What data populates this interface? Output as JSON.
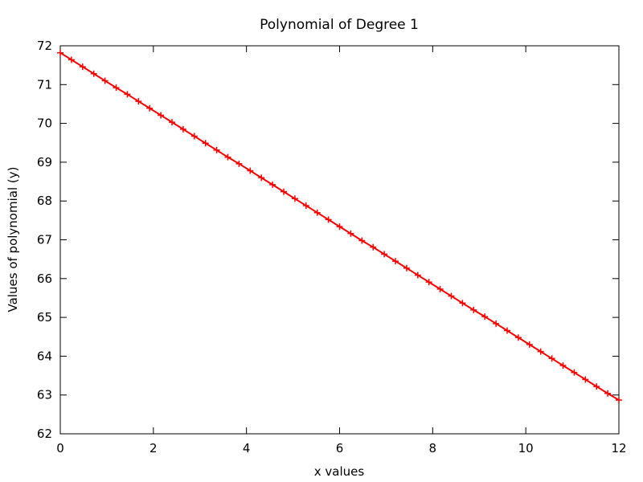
{
  "chart_data": {
    "type": "line",
    "title": "Polynomial of Degree 1",
    "xlabel": "x values",
    "ylabel": "Values of polynomial (y)",
    "xlim": [
      0,
      12
    ],
    "ylim": [
      62,
      72
    ],
    "xticks": [
      0,
      2,
      4,
      6,
      8,
      10,
      12
    ],
    "yticks": [
      62,
      63,
      64,
      65,
      66,
      67,
      68,
      69,
      70,
      71,
      72
    ],
    "grid": false,
    "legend": "none",
    "marker": "plus",
    "color": "#ff0000",
    "series": [
      {
        "x": [
          0.0,
          0.24,
          0.48,
          0.72,
          0.96,
          1.2,
          1.44,
          1.68,
          1.92,
          2.16,
          2.4,
          2.64,
          2.88,
          3.12,
          3.36,
          3.6,
          3.84,
          4.08,
          4.32,
          4.56,
          4.8,
          5.04,
          5.28,
          5.52,
          5.76,
          6.0,
          6.24,
          6.48,
          6.72,
          6.96,
          7.2,
          7.44,
          7.68,
          7.92,
          8.16,
          8.4,
          8.64,
          8.88,
          9.12,
          9.36,
          9.6,
          9.84,
          10.08,
          10.32,
          10.56,
          10.8,
          11.04,
          11.28,
          11.52,
          11.76,
          12.0
        ],
        "y": [
          71.82,
          71.64,
          71.46,
          71.28,
          71.1,
          70.92,
          70.75,
          70.57,
          70.39,
          70.21,
          70.03,
          69.85,
          69.67,
          69.49,
          69.31,
          69.13,
          68.96,
          68.78,
          68.6,
          68.42,
          68.24,
          68.06,
          67.88,
          67.7,
          67.52,
          67.34,
          67.16,
          66.98,
          66.81,
          66.63,
          66.45,
          66.27,
          66.09,
          65.91,
          65.73,
          65.55,
          65.37,
          65.19,
          65.02,
          64.84,
          64.66,
          64.48,
          64.3,
          64.12,
          63.94,
          63.76,
          63.58,
          63.4,
          63.22,
          63.04,
          62.87
        ]
      }
    ]
  }
}
